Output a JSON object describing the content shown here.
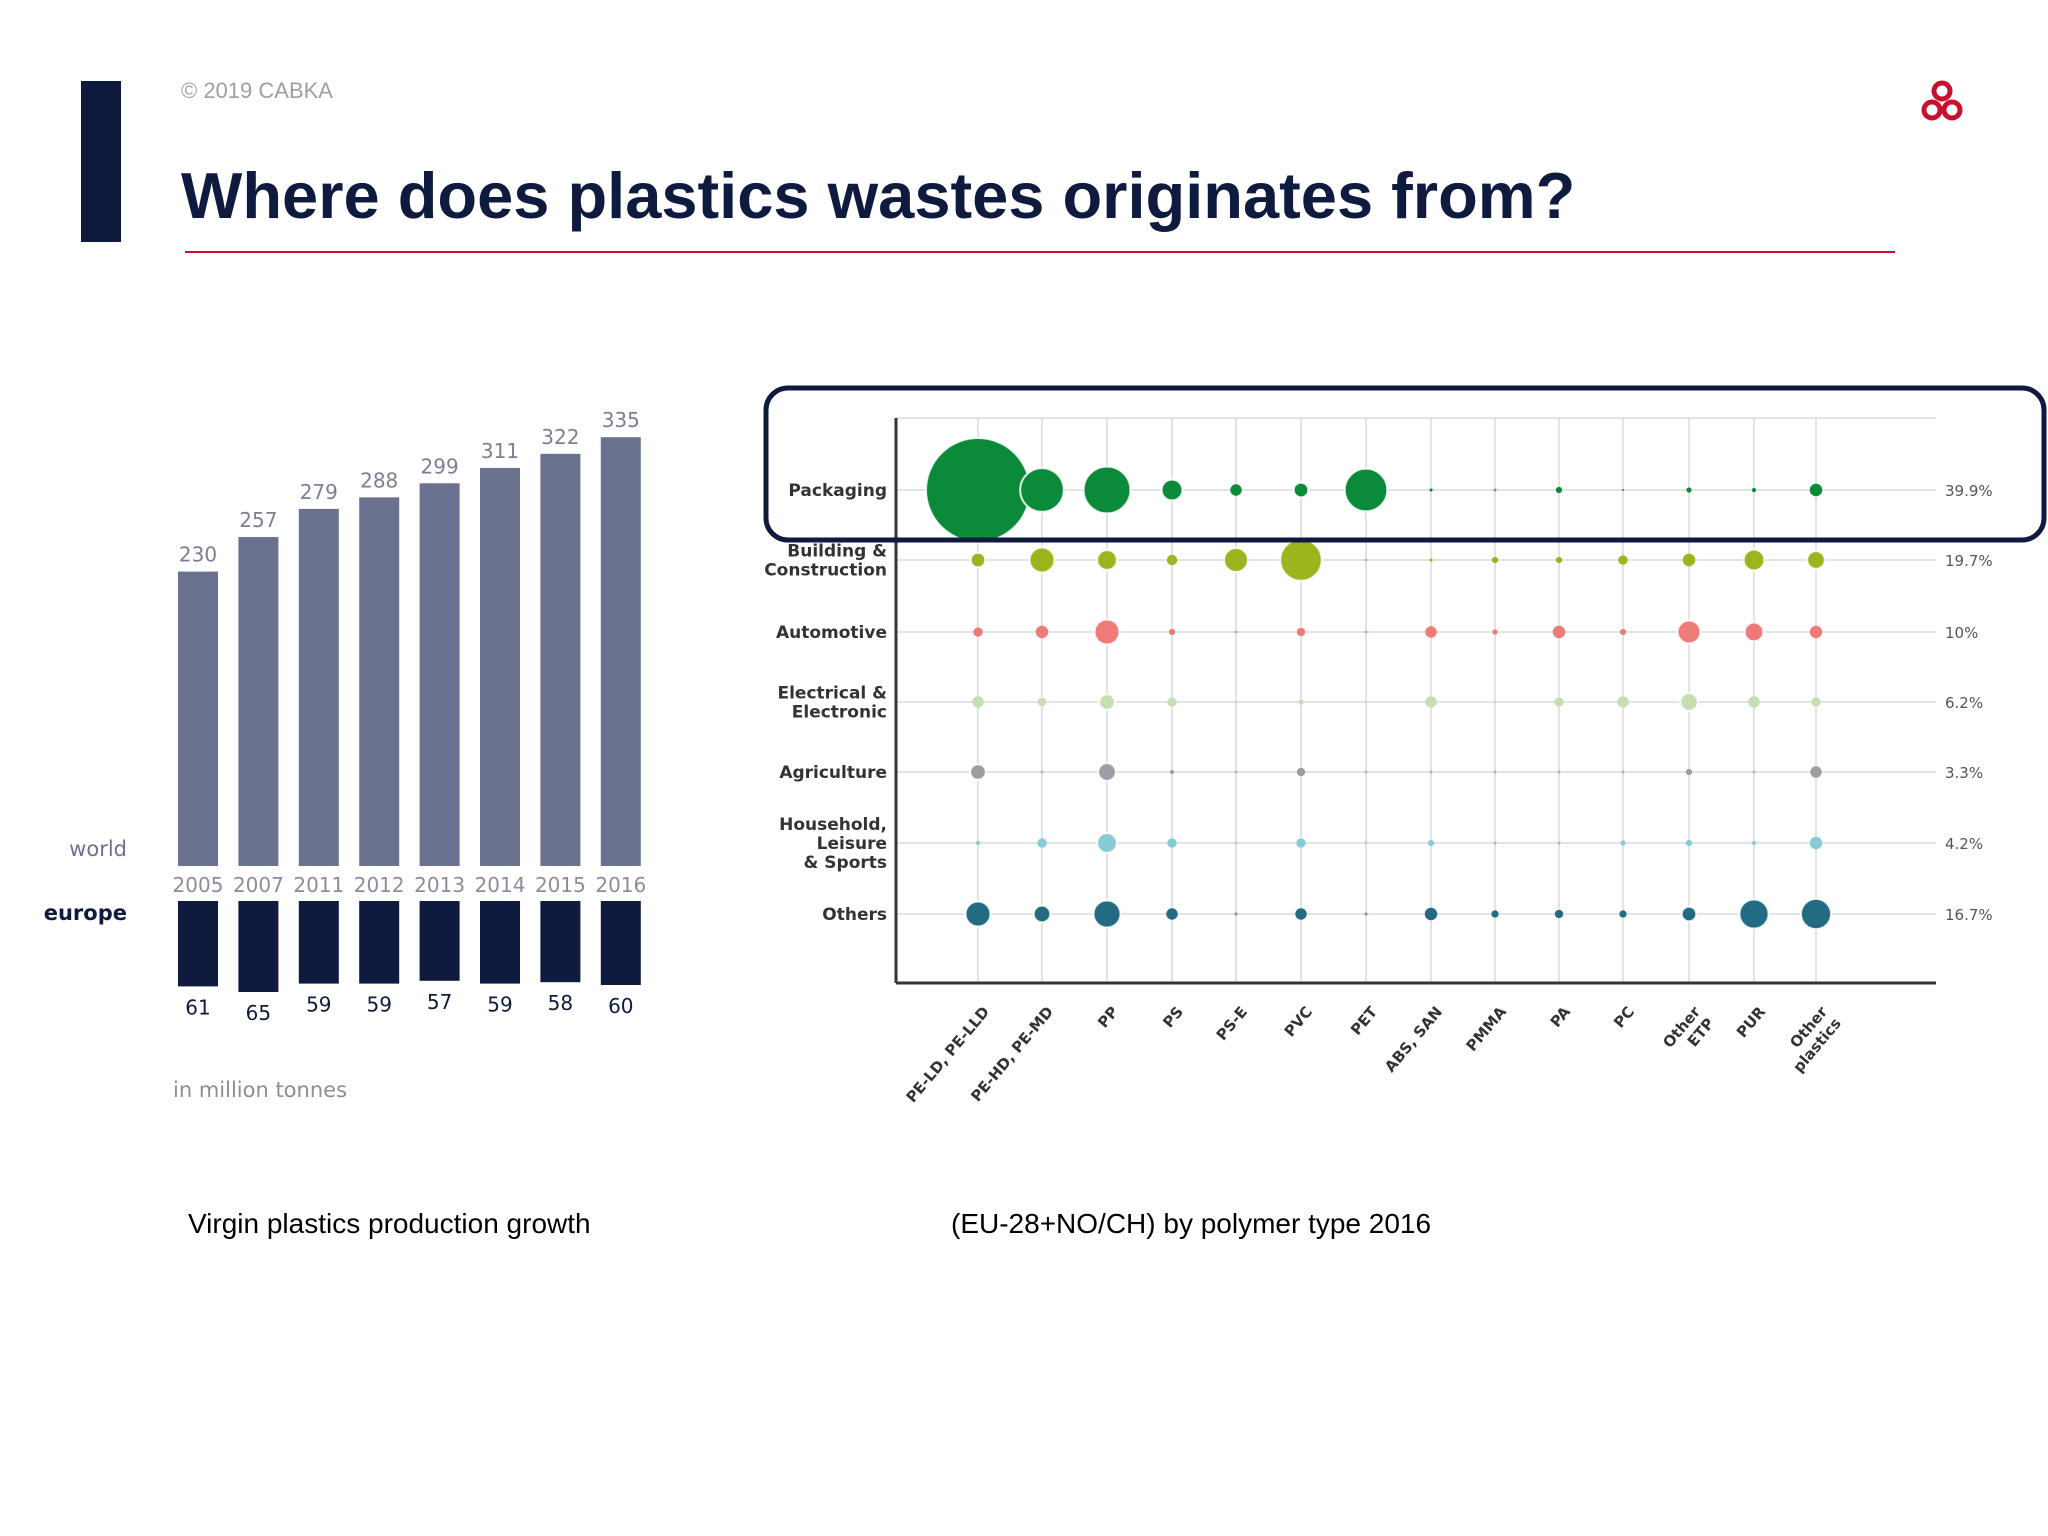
{
  "slide": {
    "copyright": "© 2019 CABKA",
    "title": "Where does plastics wastes originates from?",
    "caption_left": "Virgin plastics production growth",
    "caption_right": "(EU-28+NO/CH) by polymer type 2016"
  },
  "colors": {
    "accent": "#0f1a3f",
    "rule": "#c8102e",
    "logo": "#c8102e",
    "world_bar": "#6b7290",
    "europe_bar": "#0f1a3f"
  },
  "chart_data": [
    {
      "type": "bar",
      "categories": [
        "2005",
        "2007",
        "2011",
        "2012",
        "2013",
        "2014",
        "2015",
        "2016"
      ],
      "series": [
        {
          "name": "world",
          "values": [
            230,
            257,
            279,
            288,
            299,
            311,
            322,
            335
          ]
        },
        {
          "name": "europe",
          "values": [
            61,
            65,
            59,
            59,
            57,
            59,
            58,
            60
          ]
        }
      ],
      "unit_note": "in million tonnes"
    },
    {
      "type": "scatter",
      "x_categories": [
        "PE-LD, PE-LLD",
        "PE-HD, PE-MD",
        "PP",
        "PS",
        "PS-E",
        "PVC",
        "PET",
        "ABS, SAN",
        "PMMA",
        "PA",
        "PC",
        "Other ETP",
        "PUR",
        "Other plastics"
      ],
      "rows": [
        {
          "label": "Packaging",
          "share": "39.9%",
          "color": "#0b8a3a",
          "sizes": [
            100,
            42,
            45,
            20,
            11,
            14,
            41,
            3,
            0,
            6,
            2,
            5,
            4,
            12
          ],
          "highlighted": true
        },
        {
          "label": "Building & Construction",
          "share": "19.7%",
          "color": "#9bb51f",
          "sizes": [
            14,
            24,
            19,
            10,
            23,
            40,
            0,
            3,
            6,
            6,
            9,
            12,
            20,
            17
          ]
        },
        {
          "label": "Automotive",
          "share": "10%",
          "color": "#ee7b78",
          "sizes": [
            9,
            12,
            24,
            6,
            0,
            8,
            0,
            11,
            5,
            12,
            6,
            22,
            18,
            12
          ]
        },
        {
          "label": "Electrical & Electronic",
          "share": "6.2%",
          "color": "#c5dfb3",
          "sizes": [
            11,
            8,
            15,
            9,
            0,
            5,
            0,
            11,
            0,
            9,
            11,
            17,
            11,
            9
          ]
        },
        {
          "label": "Agriculture",
          "share": "3.3%",
          "color": "#9e9da3",
          "sizes": [
            15,
            0,
            17,
            4,
            0,
            8,
            0,
            0,
            0,
            0,
            0,
            6,
            0,
            11
          ]
        },
        {
          "label": "Household, Leisure & Sports",
          "share": "4.2%",
          "color": "#86cbd6",
          "sizes": [
            4,
            9,
            19,
            9,
            0,
            9,
            0,
            6,
            3,
            3,
            5,
            6,
            4,
            12
          ]
        },
        {
          "label": "Others",
          "share": "16.7%",
          "color": "#226b82",
          "sizes": [
            24,
            16,
            26,
            11,
            0,
            11,
            0,
            12,
            7,
            8,
            7,
            14,
            28,
            29
          ]
        }
      ]
    }
  ]
}
